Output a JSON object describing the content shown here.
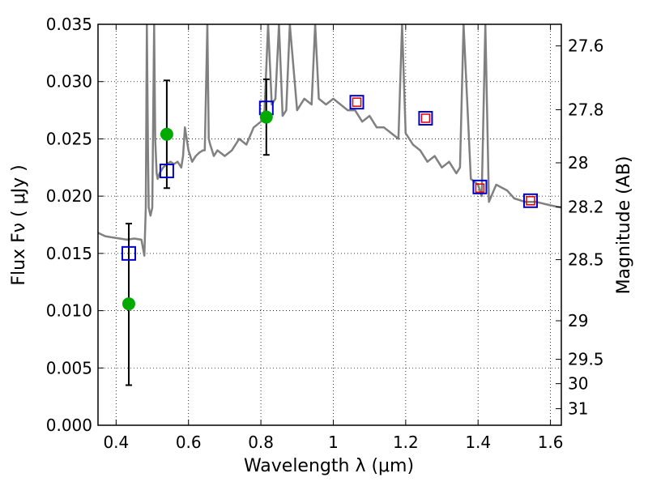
{
  "chart_data": {
    "type": "line",
    "xlabel": "Wavelength  λ (μm)",
    "ylabel": "Flux  Fν  ( μJy )",
    "y2label": "Magnitude (AB)",
    "xlim": [
      0.35,
      1.63
    ],
    "ylim": [
      0,
      0.035
    ],
    "grid": true,
    "x_ticks": [
      0.4,
      0.6,
      0.8,
      1.0,
      1.2,
      1.4,
      1.6
    ],
    "x_tick_labels": [
      "0.4",
      "0.6",
      "0.8",
      "1",
      "1.2",
      "1.4",
      "1.6"
    ],
    "y_ticks": [
      0,
      0.005,
      0.01,
      0.015,
      0.02,
      0.025,
      0.03,
      0.035
    ],
    "y_tick_labels": [
      "0.000",
      "0.005",
      "0.010",
      "0.015",
      "0.020",
      "0.025",
      "0.030",
      "0.035"
    ],
    "y2_ticks": [
      27.6,
      27.8,
      28,
      28.2,
      28.5,
      29,
      29.5,
      30,
      31
    ],
    "y2_tick_labels": [
      "27.6",
      "27.8",
      "28",
      "28.2",
      "28.5",
      "29",
      "29.5",
      "30",
      "31"
    ],
    "colors": {
      "spectrum": "#808080",
      "model_square": "#0000cc",
      "inner_square": "#dd0000",
      "observed_point": "#00aa00",
      "errorbar": "#000000"
    },
    "series": [
      {
        "kind": "spectrum",
        "x": [
          0.35,
          0.37,
          0.39,
          0.41,
          0.43,
          0.45,
          0.47,
          0.478,
          0.482,
          0.485,
          0.488,
          0.49,
          0.495,
          0.5,
          0.505,
          0.508,
          0.512,
          0.515,
          0.52,
          0.53,
          0.54,
          0.55,
          0.56,
          0.57,
          0.58,
          0.585,
          0.59,
          0.6,
          0.61,
          0.62,
          0.63,
          0.64,
          0.645,
          0.652,
          0.656,
          0.66,
          0.665,
          0.67,
          0.68,
          0.7,
          0.72,
          0.74,
          0.76,
          0.78,
          0.8,
          0.81,
          0.82,
          0.83,
          0.84,
          0.85,
          0.86,
          0.87,
          0.88,
          0.9,
          0.92,
          0.94,
          0.95,
          0.96,
          0.98,
          1.0,
          1.02,
          1.04,
          1.06,
          1.08,
          1.1,
          1.12,
          1.14,
          1.16,
          1.18,
          1.19,
          1.2,
          1.22,
          1.24,
          1.26,
          1.28,
          1.3,
          1.32,
          1.34,
          1.35,
          1.36,
          1.38,
          1.4,
          1.41,
          1.42,
          1.43,
          1.45,
          1.48,
          1.5,
          1.53,
          1.56,
          1.6,
          1.63
        ],
        "y": [
          0.0168,
          0.0165,
          0.0164,
          0.0163,
          0.0162,
          0.0163,
          0.0162,
          0.0148,
          0.019,
          0.035,
          0.024,
          0.019,
          0.0183,
          0.019,
          0.035,
          0.025,
          0.022,
          0.0215,
          0.022,
          0.0225,
          0.0228,
          0.023,
          0.0228,
          0.023,
          0.0225,
          0.0235,
          0.026,
          0.024,
          0.023,
          0.0235,
          0.0238,
          0.024,
          0.024,
          0.035,
          0.025,
          0.0245,
          0.024,
          0.0235,
          0.024,
          0.0235,
          0.024,
          0.025,
          0.0245,
          0.026,
          0.0265,
          0.0275,
          0.035,
          0.028,
          0.0285,
          0.035,
          0.027,
          0.0275,
          0.035,
          0.0275,
          0.0285,
          0.028,
          0.035,
          0.0285,
          0.028,
          0.0285,
          0.028,
          0.0275,
          0.0275,
          0.0265,
          0.027,
          0.026,
          0.026,
          0.0255,
          0.025,
          0.035,
          0.0255,
          0.0245,
          0.024,
          0.023,
          0.0235,
          0.0225,
          0.023,
          0.022,
          0.0225,
          0.035,
          0.0215,
          0.021,
          0.02,
          0.035,
          0.0195,
          0.021,
          0.0205,
          0.0198,
          0.0195,
          0.0195,
          0.0192,
          0.019
        ]
      },
      {
        "kind": "model_squares",
        "x": [
          0.435,
          0.54,
          0.815,
          1.065,
          1.255,
          1.405,
          1.545
        ],
        "y": [
          0.015,
          0.0222,
          0.0277,
          0.0282,
          0.0268,
          0.0208,
          0.0196
        ]
      },
      {
        "kind": "inner_squares",
        "x": [
          1.065,
          1.255,
          1.405,
          1.545
        ],
        "y": [
          0.0282,
          0.0268,
          0.0207,
          0.0196
        ]
      },
      {
        "kind": "observed_points",
        "x": [
          0.435,
          0.54,
          0.815
        ],
        "y": [
          0.0106,
          0.0254,
          0.0269
        ],
        "yerr_low": [
          0.0035,
          0.0207,
          0.0236
        ],
        "yerr_high": [
          0.0176,
          0.0301,
          0.0302
        ]
      }
    ]
  }
}
